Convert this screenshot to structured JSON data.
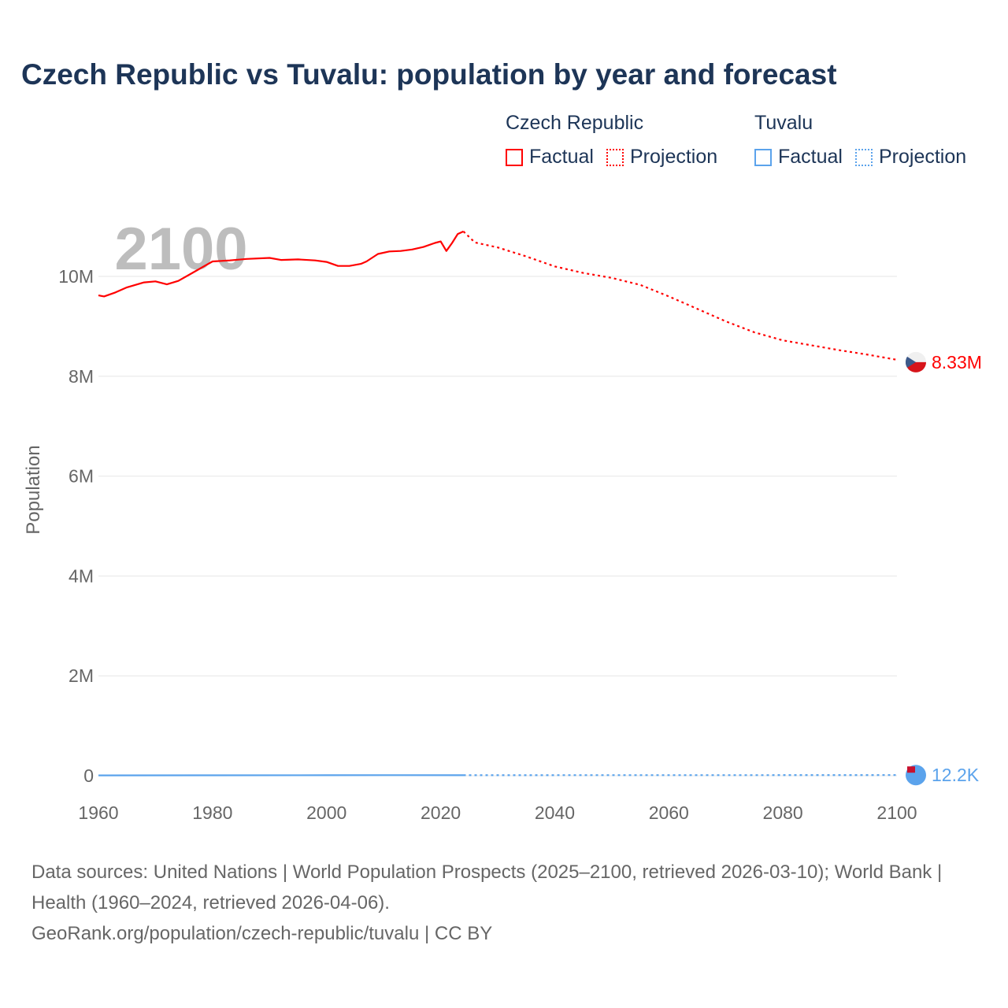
{
  "title": "Czech Republic vs Tuvalu: population by year and forecast",
  "legend": [
    {
      "group": "Czech Republic",
      "color": "#ff0000",
      "factual": "Factual",
      "projection": "Projection"
    },
    {
      "group": "Tuvalu",
      "color": "#5ba3ec",
      "factual": "Factual",
      "projection": "Projection"
    }
  ],
  "footer": {
    "sources": "Data sources: United Nations | World Population Prospects (2025–2100, retrieved 2026-03-10); World Bank | Health (1960–2024, retrieved 2026-04-06).",
    "link": "GeoRank.org/population/czech-republic/tuvalu | CC BY"
  },
  "chart_data": {
    "type": "line",
    "title": "Czech Republic vs Tuvalu: population by year and forecast",
    "xlabel": "",
    "ylabel": "Population",
    "xlim": [
      1960,
      2100
    ],
    "ylim": [
      0,
      11000000
    ],
    "current_year_label": "2100",
    "x_ticks": [
      "1960",
      "1980",
      "2000",
      "2020",
      "2040",
      "2060",
      "2080",
      "2100"
    ],
    "x_tick_values": [
      1960,
      1980,
      2000,
      2020,
      2040,
      2060,
      2080,
      2100
    ],
    "y_ticks": [
      "0",
      "2M",
      "4M",
      "6M",
      "8M",
      "10M"
    ],
    "y_tick_values": [
      0,
      2000000,
      4000000,
      6000000,
      8000000,
      10000000
    ],
    "series": [
      {
        "name": "Czech Republic",
        "color": "#ff0000",
        "end_label": "8.33M",
        "factual": {
          "x": [
            1960,
            1961,
            1963,
            1965,
            1968,
            1970,
            1972,
            1974,
            1976,
            1978,
            1980,
            1983,
            1986,
            1990,
            1992,
            1995,
            1998,
            2000,
            2002,
            2004,
            2006,
            2007,
            2009,
            2011,
            2013,
            2015,
            2017,
            2019,
            2020,
            2021,
            2022,
            2023,
            2024
          ],
          "y": [
            9.62,
            9.6,
            9.68,
            9.78,
            9.88,
            9.9,
            9.84,
            9.91,
            10.04,
            10.17,
            10.3,
            10.32,
            10.35,
            10.37,
            10.33,
            10.34,
            10.32,
            10.29,
            10.21,
            10.21,
            10.25,
            10.3,
            10.45,
            10.5,
            10.51,
            10.54,
            10.59,
            10.67,
            10.7,
            10.51,
            10.67,
            10.85,
            10.9
          ]
        },
        "projection": {
          "x": [
            2024,
            2026,
            2030,
            2035,
            2040,
            2045,
            2050,
            2055,
            2060,
            2065,
            2070,
            2075,
            2080,
            2085,
            2090,
            2095,
            2100
          ],
          "y": [
            10.9,
            10.68,
            10.58,
            10.4,
            10.2,
            10.07,
            9.97,
            9.83,
            9.6,
            9.35,
            9.1,
            8.88,
            8.72,
            8.62,
            8.52,
            8.43,
            8.33
          ]
        }
      },
      {
        "name": "Tuvalu",
        "color": "#5ba3ec",
        "end_label": "12.2K",
        "factual": {
          "x": [
            1960,
            1980,
            2000,
            2010,
            2024
          ],
          "y": [
            0.0056,
            0.0077,
            0.0095,
            0.0105,
            0.0096
          ]
        },
        "projection": {
          "x": [
            2024,
            2050,
            2075,
            2100
          ],
          "y": [
            0.0096,
            0.0105,
            0.0115,
            0.0122
          ]
        }
      }
    ],
    "unit": "millions"
  }
}
